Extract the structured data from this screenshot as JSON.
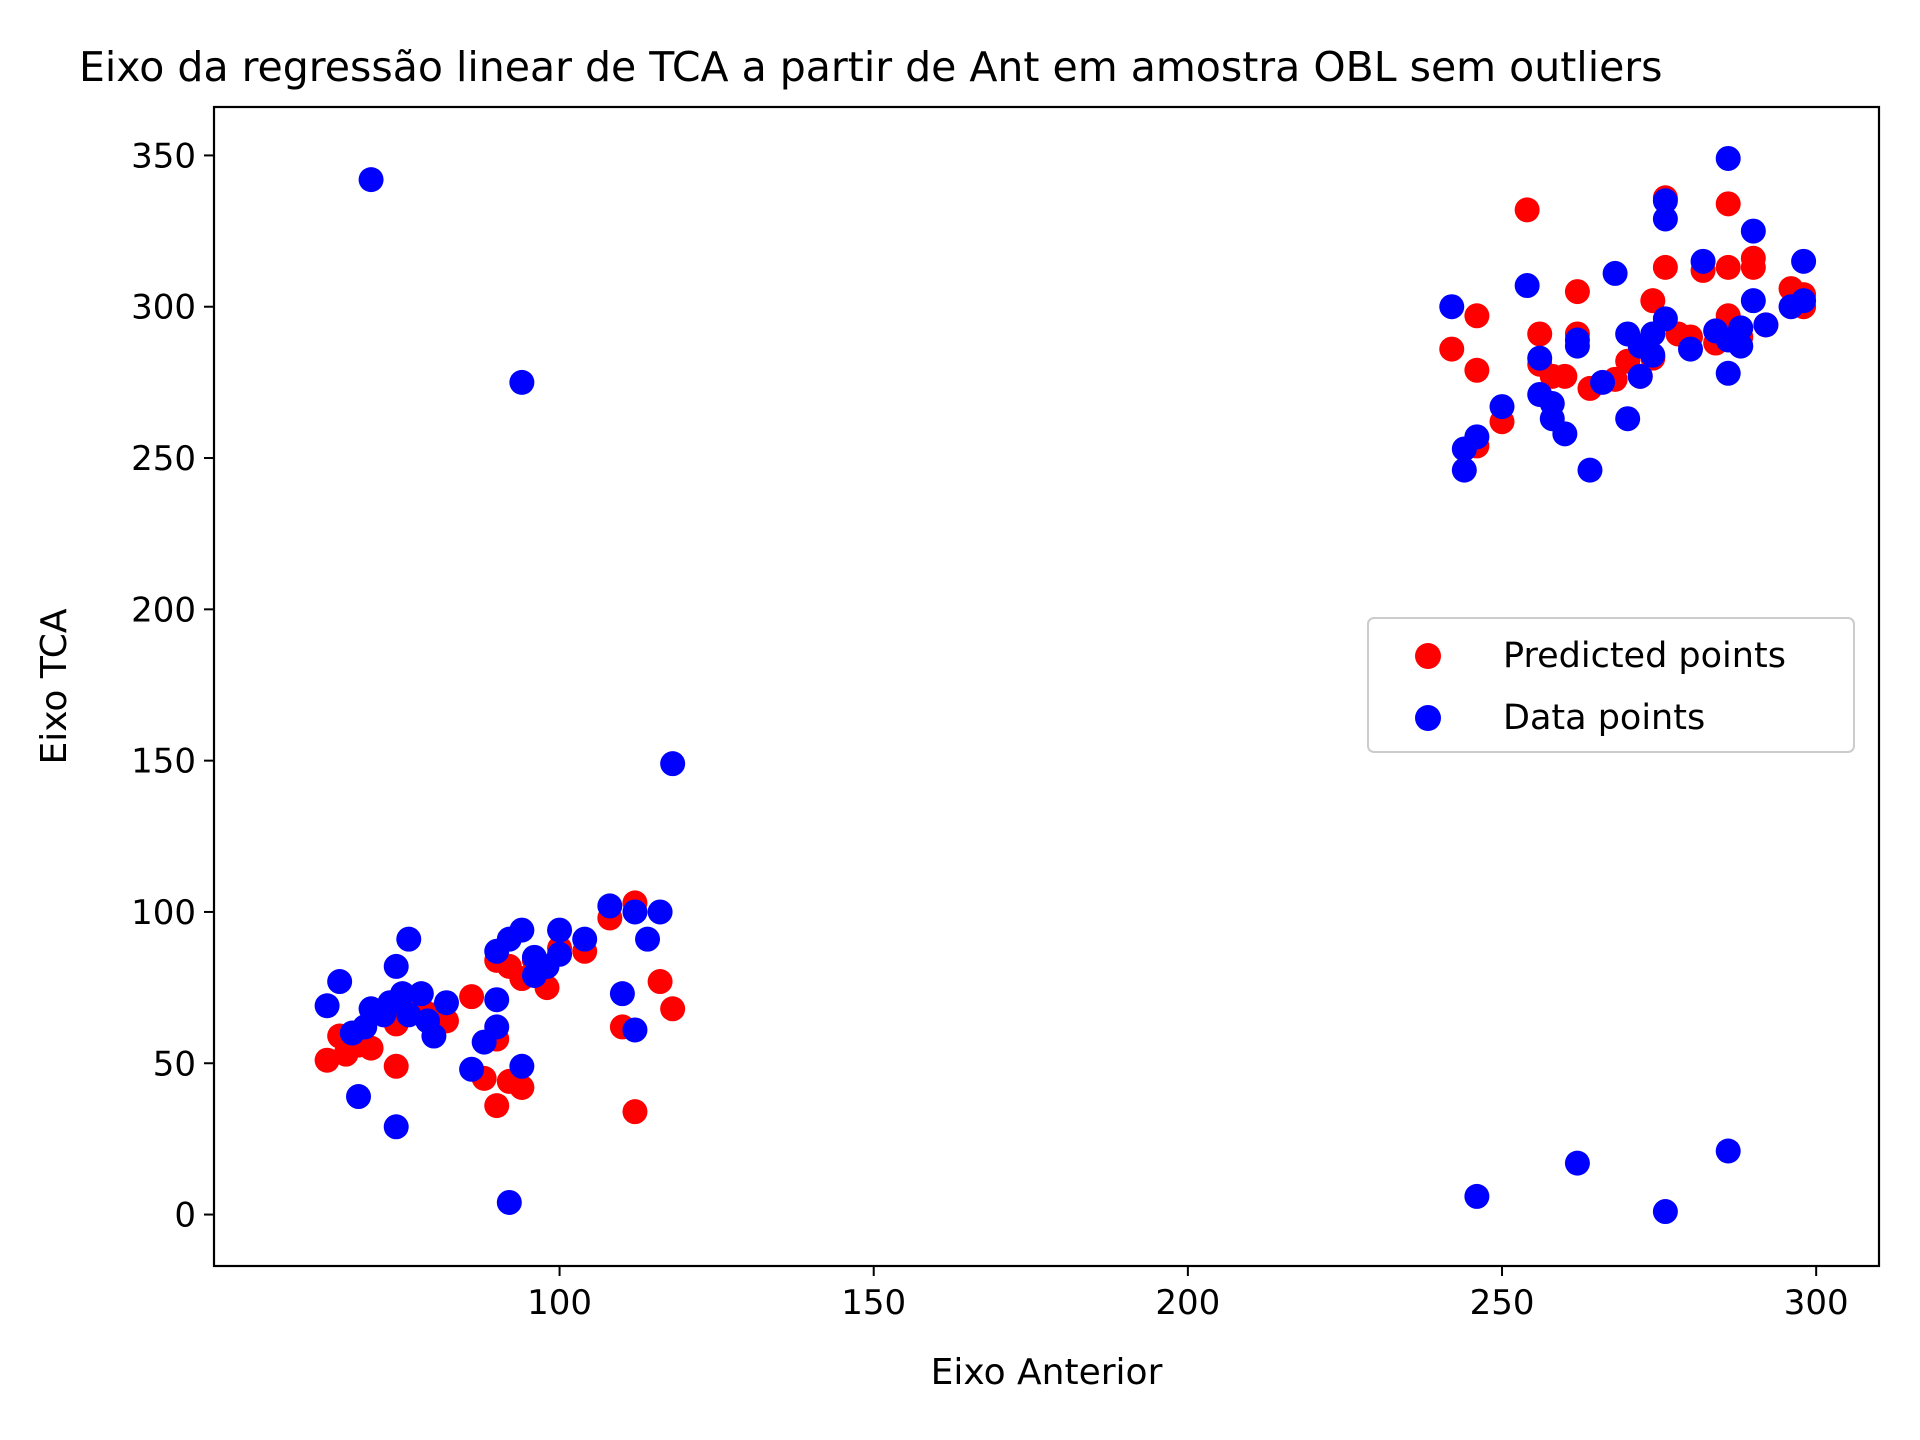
{
  "chart_data": {
    "type": "scatter",
    "title": "Eixo da regressão linear de TCA a partir de Ant em amostra OBL sem outliers",
    "xlabel": "Eixo Anterior",
    "ylabel": "Eixo TCA",
    "xlim": [
      45,
      310
    ],
    "ylim": [
      -17,
      366
    ],
    "x_ticks": [
      100,
      150,
      200,
      250,
      300
    ],
    "y_ticks": [
      0,
      50,
      100,
      150,
      200,
      250,
      300,
      350
    ],
    "grid": false,
    "legend_position": "center-right",
    "series": [
      {
        "name": "Predicted points",
        "color": "#ff0000",
        "points": [
          [
            63,
            51
          ],
          [
            65,
            59
          ],
          [
            66,
            53
          ],
          [
            68,
            56
          ],
          [
            70,
            55
          ],
          [
            72,
            67
          ],
          [
            74,
            63
          ],
          [
            74,
            49
          ],
          [
            76,
            70
          ],
          [
            78,
            68
          ],
          [
            80,
            66
          ],
          [
            82,
            64
          ],
          [
            86,
            72
          ],
          [
            88,
            45
          ],
          [
            90,
            36
          ],
          [
            90,
            58
          ],
          [
            90,
            84
          ],
          [
            92,
            44
          ],
          [
            92,
            82
          ],
          [
            94,
            42
          ],
          [
            94,
            78
          ],
          [
            96,
            84
          ],
          [
            98,
            75
          ],
          [
            100,
            88
          ],
          [
            104,
            87
          ],
          [
            108,
            98
          ],
          [
            110,
            62
          ],
          [
            112,
            103
          ],
          [
            112,
            34
          ],
          [
            116,
            77
          ],
          [
            118,
            68
          ],
          [
            242,
            286
          ],
          [
            246,
            297
          ],
          [
            246,
            279
          ],
          [
            246,
            254
          ],
          [
            250,
            262
          ],
          [
            254,
            332
          ],
          [
            256,
            291
          ],
          [
            256,
            281
          ],
          [
            258,
            277
          ],
          [
            260,
            277
          ],
          [
            262,
            305
          ],
          [
            262,
            291
          ],
          [
            264,
            273
          ],
          [
            268,
            276
          ],
          [
            270,
            282
          ],
          [
            272,
            277
          ],
          [
            274,
            302
          ],
          [
            274,
            283
          ],
          [
            276,
            336
          ],
          [
            276,
            313
          ],
          [
            278,
            291
          ],
          [
            280,
            290
          ],
          [
            282,
            312
          ],
          [
            284,
            288
          ],
          [
            286,
            334
          ],
          [
            286,
            313
          ],
          [
            286,
            297
          ],
          [
            288,
            290
          ],
          [
            290,
            316
          ],
          [
            290,
            313
          ],
          [
            292,
            294
          ],
          [
            296,
            306
          ],
          [
            298,
            304
          ],
          [
            298,
            300
          ]
        ]
      },
      {
        "name": "Data points",
        "color": "#0000ff",
        "points": [
          [
            63,
            69
          ],
          [
            65,
            77
          ],
          [
            67,
            60
          ],
          [
            68,
            39
          ],
          [
            69,
            62
          ],
          [
            70,
            68
          ],
          [
            72,
            66
          ],
          [
            73,
            70
          ],
          [
            74,
            82
          ],
          [
            74,
            29
          ],
          [
            75,
            73
          ],
          [
            76,
            91
          ],
          [
            76,
            66
          ],
          [
            78,
            73
          ],
          [
            79,
            64
          ],
          [
            80,
            59
          ],
          [
            82,
            70
          ],
          [
            70,
            342
          ],
          [
            94,
            275
          ],
          [
            86,
            48
          ],
          [
            88,
            57
          ],
          [
            90,
            87
          ],
          [
            90,
            71
          ],
          [
            90,
            62
          ],
          [
            92,
            91
          ],
          [
            92,
            4
          ],
          [
            94,
            94
          ],
          [
            94,
            49
          ],
          [
            96,
            85
          ],
          [
            96,
            79
          ],
          [
            98,
            82
          ],
          [
            100,
            94
          ],
          [
            100,
            86
          ],
          [
            104,
            91
          ],
          [
            108,
            102
          ],
          [
            110,
            73
          ],
          [
            112,
            100
          ],
          [
            112,
            61
          ],
          [
            114,
            91
          ],
          [
            116,
            100
          ],
          [
            118,
            149
          ],
          [
            242,
            300
          ],
          [
            244,
            253
          ],
          [
            244,
            246
          ],
          [
            246,
            257
          ],
          [
            246,
            6
          ],
          [
            250,
            267
          ],
          [
            254,
            307
          ],
          [
            256,
            283
          ],
          [
            256,
            271
          ],
          [
            258,
            268
          ],
          [
            258,
            263
          ],
          [
            260,
            258
          ],
          [
            262,
            289
          ],
          [
            262,
            287
          ],
          [
            262,
            17
          ],
          [
            264,
            246
          ],
          [
            266,
            275
          ],
          [
            268,
            311
          ],
          [
            270,
            291
          ],
          [
            270,
            263
          ],
          [
            272,
            287
          ],
          [
            272,
            277
          ],
          [
            274,
            291
          ],
          [
            274,
            284
          ],
          [
            276,
            335
          ],
          [
            276,
            329
          ],
          [
            276,
            296
          ],
          [
            276,
            1
          ],
          [
            280,
            286
          ],
          [
            282,
            315
          ],
          [
            284,
            292
          ],
          [
            286,
            349
          ],
          [
            286,
            289
          ],
          [
            286,
            278
          ],
          [
            286,
            21
          ],
          [
            288,
            293
          ],
          [
            288,
            287
          ],
          [
            290,
            325
          ],
          [
            290,
            302
          ],
          [
            292,
            294
          ],
          [
            296,
            300
          ],
          [
            298,
            315
          ],
          [
            298,
            302
          ]
        ]
      }
    ]
  }
}
